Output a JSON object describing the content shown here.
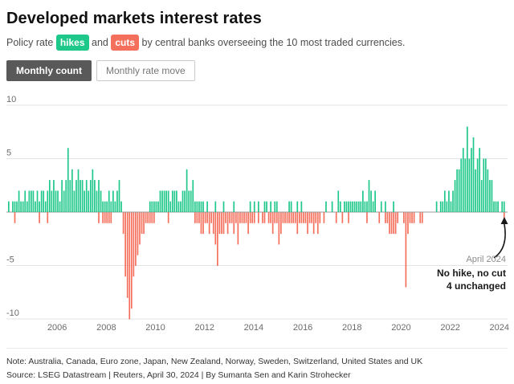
{
  "header": {
    "title": "Developed markets interest rates",
    "subtitle": {
      "prefix": "Policy rate ",
      "hike_label": "hikes",
      "mid": " and ",
      "cut_label": "cuts",
      "suffix": " by central banks overseeing the 10 most traded currencies."
    }
  },
  "toolbar": {
    "tabs": [
      {
        "label": "Monthly count",
        "active": true
      },
      {
        "label": "Monthly rate move",
        "active": false
      }
    ]
  },
  "annotation": {
    "date": "April 2024",
    "line1": "No hike, no cut",
    "line2": "4 unchanged"
  },
  "footer": {
    "note": "Note: Australia, Canada, Euro zone, Japan, New Zealand, Norway, Sweden, Switzerland, United States and UK",
    "source": "Source: LSEG Datastream | Reuters, April 30, 2024 | By Sumanta Sen and Karin Strohecker"
  },
  "colors": {
    "hike": "#1ec78a",
    "cut": "#f4705c",
    "tab_active_bg": "#595959",
    "zero_line": "#9a9a9a",
    "grid": "#e3e3e3",
    "tick_text": "#6b6b6b",
    "annotation_arrow": "#1a1a1a"
  },
  "chart_data": {
    "type": "bar",
    "title": "Developed markets interest rates",
    "subtitle": "Monthly count of policy rate hikes (positive bars) and cuts (negative bars)",
    "start_month": "2004-01",
    "end_month": "2024-04",
    "ylim": [
      -10,
      10
    ],
    "yticks": [
      10,
      5,
      -5,
      -10
    ],
    "gridline_values": [
      10,
      5,
      0,
      -5,
      -10
    ],
    "x_tick_years": [
      2006,
      2008,
      2010,
      2012,
      2014,
      2016,
      2018,
      2020,
      2022,
      2024
    ],
    "legend_position": "in-subtitle-chips",
    "grid": true,
    "series": [
      {
        "name": "hikes",
        "sign": 1,
        "values": [
          1,
          0,
          1,
          1,
          1,
          2,
          1,
          1,
          2,
          1,
          2,
          2,
          2,
          1,
          2,
          1,
          2,
          2,
          1,
          2,
          3,
          2,
          3,
          2,
          2,
          1,
          3,
          2,
          3,
          6,
          3,
          4,
          2,
          3,
          4,
          3,
          3,
          2,
          3,
          2,
          3,
          4,
          3,
          2,
          3,
          2,
          1,
          1,
          1,
          2,
          1,
          2,
          1,
          2,
          3,
          1,
          0,
          0,
          0,
          0,
          0,
          0,
          0,
          0,
          0,
          0,
          0,
          0,
          0,
          1,
          1,
          1,
          1,
          1,
          2,
          2,
          2,
          2,
          2,
          1,
          2,
          2,
          2,
          1,
          1,
          2,
          2,
          4,
          2,
          2,
          3,
          1,
          1,
          1,
          1,
          1,
          0,
          1,
          0,
          0,
          0,
          1,
          0,
          0,
          0,
          1,
          0,
          0,
          0,
          0,
          1,
          0,
          0,
          0,
          0,
          0,
          0,
          0,
          1,
          0,
          1,
          0,
          1,
          0,
          0,
          1,
          1,
          0,
          1,
          0,
          1,
          1,
          0,
          0,
          0,
          0,
          0,
          1,
          1,
          0,
          0,
          1,
          0,
          1,
          0,
          0,
          0,
          0,
          0,
          0,
          0,
          0,
          0,
          0,
          0,
          1,
          0,
          0,
          1,
          0,
          0,
          2,
          1,
          0,
          1,
          1,
          1,
          1,
          1,
          1,
          1,
          1,
          1,
          2,
          1,
          1,
          3,
          2,
          1,
          2,
          0,
          0,
          1,
          0,
          1,
          0,
          0,
          0,
          1,
          0,
          0,
          0,
          0,
          0,
          0,
          0,
          0,
          0,
          0,
          0,
          0,
          0,
          0,
          0,
          0,
          0,
          0,
          0,
          0,
          1,
          0,
          1,
          1,
          2,
          1,
          2,
          1,
          2,
          3,
          4,
          4,
          5,
          6,
          5,
          8,
          5,
          6,
          7,
          4,
          5,
          6,
          3,
          5,
          5,
          4,
          3,
          3,
          1,
          1,
          1,
          0,
          1,
          1,
          0
        ]
      },
      {
        "name": "cuts",
        "sign": -1,
        "values": [
          0,
          0,
          0,
          1,
          0,
          0,
          0,
          0,
          0,
          0,
          0,
          0,
          0,
          0,
          0,
          1,
          0,
          0,
          0,
          1,
          0,
          0,
          0,
          0,
          0,
          0,
          0,
          0,
          0,
          0,
          0,
          0,
          0,
          0,
          0,
          0,
          0,
          0,
          0,
          0,
          0,
          0,
          0,
          0,
          1,
          0,
          1,
          1,
          1,
          1,
          1,
          0,
          0,
          0,
          0,
          0,
          2,
          6,
          8,
          10,
          9,
          6,
          5,
          4,
          3,
          2,
          2,
          1,
          1,
          1,
          1,
          1,
          0,
          0,
          0,
          0,
          0,
          0,
          1,
          0,
          0,
          0,
          0,
          0,
          0,
          0,
          0,
          0,
          0,
          0,
          0,
          1,
          1,
          1,
          2,
          2,
          1,
          1,
          2,
          1,
          2,
          3,
          5,
          2,
          2,
          2,
          1,
          2,
          1,
          1,
          2,
          1,
          3,
          1,
          1,
          1,
          1,
          2,
          1,
          1,
          1,
          0,
          1,
          0,
          1,
          1,
          0,
          1,
          1,
          2,
          1,
          1,
          3,
          2,
          1,
          1,
          1,
          1,
          1,
          1,
          1,
          2,
          1,
          1,
          1,
          1,
          2,
          1,
          1,
          2,
          1,
          2,
          1,
          0,
          1,
          0,
          0,
          0,
          0,
          0,
          1,
          0,
          0,
          1,
          0,
          0,
          1,
          0,
          0,
          0,
          0,
          0,
          0,
          0,
          0,
          1,
          0,
          0,
          0,
          0,
          0,
          1,
          0,
          0,
          1,
          1,
          2,
          2,
          2,
          2,
          1,
          0,
          0,
          1,
          7,
          2,
          1,
          1,
          1,
          0,
          0,
          1,
          1,
          0,
          0,
          0,
          0,
          0,
          0,
          0,
          0,
          0,
          0,
          0,
          0,
          0,
          0,
          0,
          0,
          0,
          0,
          0,
          0,
          0,
          0,
          0,
          0,
          0,
          0,
          0,
          0,
          0,
          0,
          0,
          0,
          0,
          0,
          0,
          0,
          0,
          0,
          0,
          1,
          0
        ]
      }
    ]
  }
}
